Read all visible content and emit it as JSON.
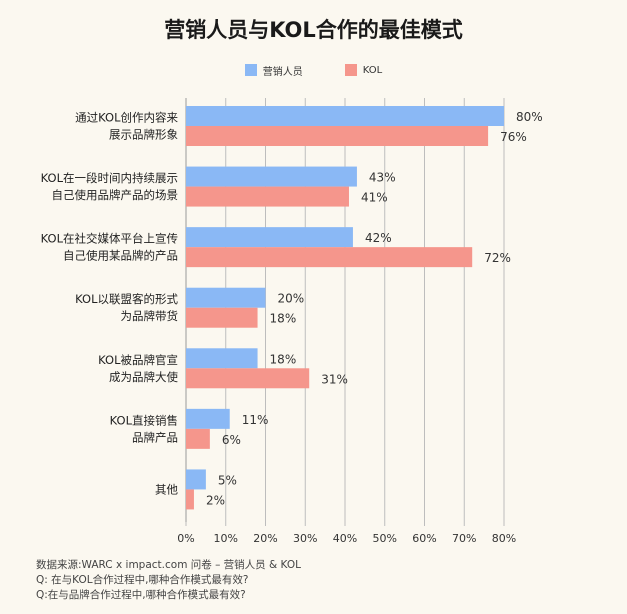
{
  "chart_data": {
    "type": "bar",
    "orientation": "horizontal",
    "title": "营销人员与KOL合作的最佳模式",
    "categories": [
      [
        "通过KOL创作内容来",
        "展示品牌形象"
      ],
      [
        "KOL在一段时间内持续展示",
        "自己使用品牌产品的场景"
      ],
      [
        "KOL在社交媒体平台上宣传",
        "自己使用某品牌的产品"
      ],
      [
        "KOL以联盟客的形式",
        "为品牌带货"
      ],
      [
        "KOL被品牌官宣",
        "成为品牌大使"
      ],
      [
        "KOL直接销售",
        "品牌产品"
      ],
      [
        "其他"
      ]
    ],
    "series": [
      {
        "name": "营销人员",
        "color": "#8ab8f5",
        "values": [
          80,
          43,
          42,
          20,
          18,
          11,
          5
        ]
      },
      {
        "name": "KOL",
        "color": "#f5968c",
        "values": [
          76,
          41,
          72,
          18,
          31,
          6,
          2
        ]
      }
    ],
    "value_suffix": "%",
    "xlim": [
      0,
      80
    ],
    "xticks": [
      0,
      10,
      20,
      30,
      40,
      50,
      60,
      70,
      80
    ],
    "grid": true,
    "legend_position": "top"
  },
  "footer": {
    "lines": [
      "数据来源:WARC x impact.com 问卷 – 营销人员 & KOL",
      "Q: 在与KOL合作过程中,哪种合作模式最有效?",
      "Q:在与品牌合作过程中,哪种合作模式最有效?"
    ]
  }
}
